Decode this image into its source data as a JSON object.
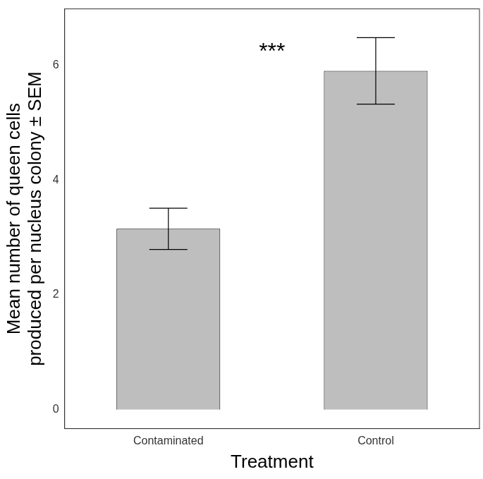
{
  "chart_data": {
    "type": "bar",
    "x_label": "Treatment",
    "y_label": "Mean number of queen cells\nproduced per nucleus colony ± SEM",
    "categories": [
      "Contaminated",
      "Control"
    ],
    "values": [
      3.15,
      5.9
    ],
    "error": [
      0.36,
      0.58
    ],
    "color": "#bebebe",
    "ylim": [
      -0.33,
      6.98
    ],
    "yticks": [
      0,
      2,
      4,
      6
    ],
    "grid": false,
    "annotations": [
      {
        "text": "***",
        "y": 6.3
      }
    ]
  }
}
